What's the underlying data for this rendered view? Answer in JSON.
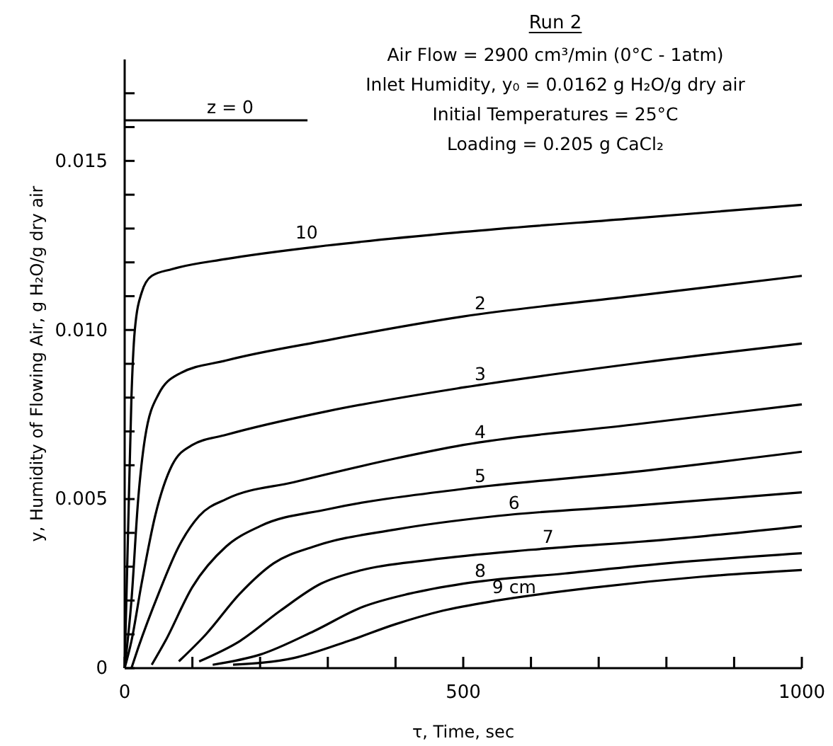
{
  "chart_data": {
    "type": "line",
    "title": "Run 2",
    "annotations": [
      "Air Flow = 2900 cm³/min (0°C - 1atm)",
      "Inlet Humidity, y₀ = 0.0162 g H₂O/g dry air",
      "Initial Temperatures = 25°C",
      "Loading = 0.205 g CaCl₂"
    ],
    "xlabel": "τ, Time, sec",
    "ylabel": "y, Humidity of Flowing Air, g H₂O/g dry air",
    "xlim": [
      0,
      1000
    ],
    "ylim": [
      0,
      0.018
    ],
    "xticks": [
      0,
      {
        "value": 100,
        "label": null
      },
      {
        "value": 200,
        "label": null
      },
      {
        "value": 300,
        "label": null
      },
      {
        "value": 400,
        "label": null
      },
      500,
      {
        "value": 600,
        "label": null
      },
      {
        "value": 700,
        "label": null
      },
      {
        "value": 800,
        "label": null
      },
      {
        "value": 900,
        "label": null
      },
      1000
    ],
    "yticks": [
      0,
      {
        "value": 0.001,
        "label": null
      },
      {
        "value": 0.002,
        "label": null
      },
      {
        "value": 0.003,
        "label": null
      },
      {
        "value": 0.004,
        "label": null
      },
      {
        "value": 0.005,
        "label": "0.005"
      },
      {
        "value": 0.006,
        "label": null
      },
      {
        "value": 0.007,
        "label": null
      },
      {
        "value": 0.008,
        "label": null
      },
      {
        "value": 0.009,
        "label": null
      },
      {
        "value": 0.01,
        "label": "0.010"
      },
      {
        "value": 0.011,
        "label": null
      },
      {
        "value": 0.012,
        "label": null
      },
      {
        "value": 0.013,
        "label": null
      },
      {
        "value": 0.014,
        "label": null
      },
      {
        "value": 0.015,
        "label": "0.015"
      },
      {
        "value": 0.016,
        "label": null
      },
      {
        "value": 0.017,
        "label": null
      }
    ],
    "grid": false,
    "legend": false,
    "marker": "none",
    "line_style": "solid",
    "series": [
      {
        "name": "z = 0",
        "color": "#000000",
        "x": [
          0,
          270
        ],
        "values": [
          0.0162,
          0.0162
        ]
      },
      {
        "name": "10",
        "color": "#000000",
        "x": [
          0,
          5,
          10,
          15,
          25,
          40,
          70,
          150,
          300,
          500,
          750,
          1000
        ],
        "values": [
          0,
          0.004,
          0.008,
          0.01,
          0.0111,
          0.0116,
          0.0118,
          0.0121,
          0.0125,
          0.0129,
          0.0133,
          0.0137
        ]
      },
      {
        "name": "2",
        "color": "#000000",
        "x": [
          0,
          10,
          20,
          30,
          50,
          80,
          150,
          300,
          500,
          750,
          1000
        ],
        "values": [
          0,
          0.002,
          0.005,
          0.0068,
          0.0081,
          0.0087,
          0.0091,
          0.0097,
          0.0104,
          0.011,
          0.0116
        ]
      },
      {
        "name": "3",
        "color": "#000000",
        "x": [
          0,
          10,
          25,
          45,
          70,
          100,
          150,
          300,
          500,
          750,
          1000
        ],
        "values": [
          0,
          0.0008,
          0.0025,
          0.0045,
          0.006,
          0.0066,
          0.0069,
          0.0076,
          0.0083,
          0.009,
          0.0096
        ]
      },
      {
        "name": "4",
        "color": "#000000",
        "x": [
          10,
          20,
          50,
          80,
          110,
          150,
          250,
          400,
          500,
          750,
          1000
        ],
        "values": [
          0,
          0.0006,
          0.0022,
          0.0036,
          0.0045,
          0.005,
          0.0055,
          0.0062,
          0.0066,
          0.0072,
          0.0078
        ]
      },
      {
        "name": "5",
        "color": "#000000",
        "x": [
          40,
          60,
          100,
          150,
          200,
          300,
          500,
          750,
          1000
        ],
        "values": [
          0.0001,
          0.0008,
          0.0024,
          0.0036,
          0.0042,
          0.0047,
          0.0053,
          0.0058,
          0.0064
        ]
      },
      {
        "name": "6",
        "color": "#000000",
        "x": [
          80,
          120,
          170,
          220,
          280,
          400,
          550,
          750,
          1000
        ],
        "values": [
          0.0002,
          0.001,
          0.0022,
          0.0031,
          0.0036,
          0.0041,
          0.0045,
          0.0048,
          0.0052
        ]
      },
      {
        "name": "7",
        "color": "#000000",
        "x": [
          110,
          170,
          230,
          290,
          350,
          450,
          600,
          800,
          1000
        ],
        "values": [
          0.0002,
          0.0008,
          0.0017,
          0.0025,
          0.0029,
          0.0032,
          0.0035,
          0.0038,
          0.0042
        ]
      },
      {
        "name": "8",
        "color": "#000000",
        "x": [
          130,
          200,
          280,
          350,
          420,
          500,
          650,
          800,
          1000
        ],
        "values": [
          0.0001,
          0.0004,
          0.0011,
          0.0018,
          0.0022,
          0.0025,
          0.0028,
          0.0031,
          0.0034
        ]
      },
      {
        "name": "9 cm",
        "color": "#000000",
        "x": [
          160,
          250,
          330,
          400,
          470,
          550,
          700,
          850,
          1000
        ],
        "values": [
          0.0001,
          0.0003,
          0.0008,
          0.0013,
          0.0017,
          0.002,
          0.0024,
          0.0027,
          0.0029
        ]
      }
    ]
  }
}
